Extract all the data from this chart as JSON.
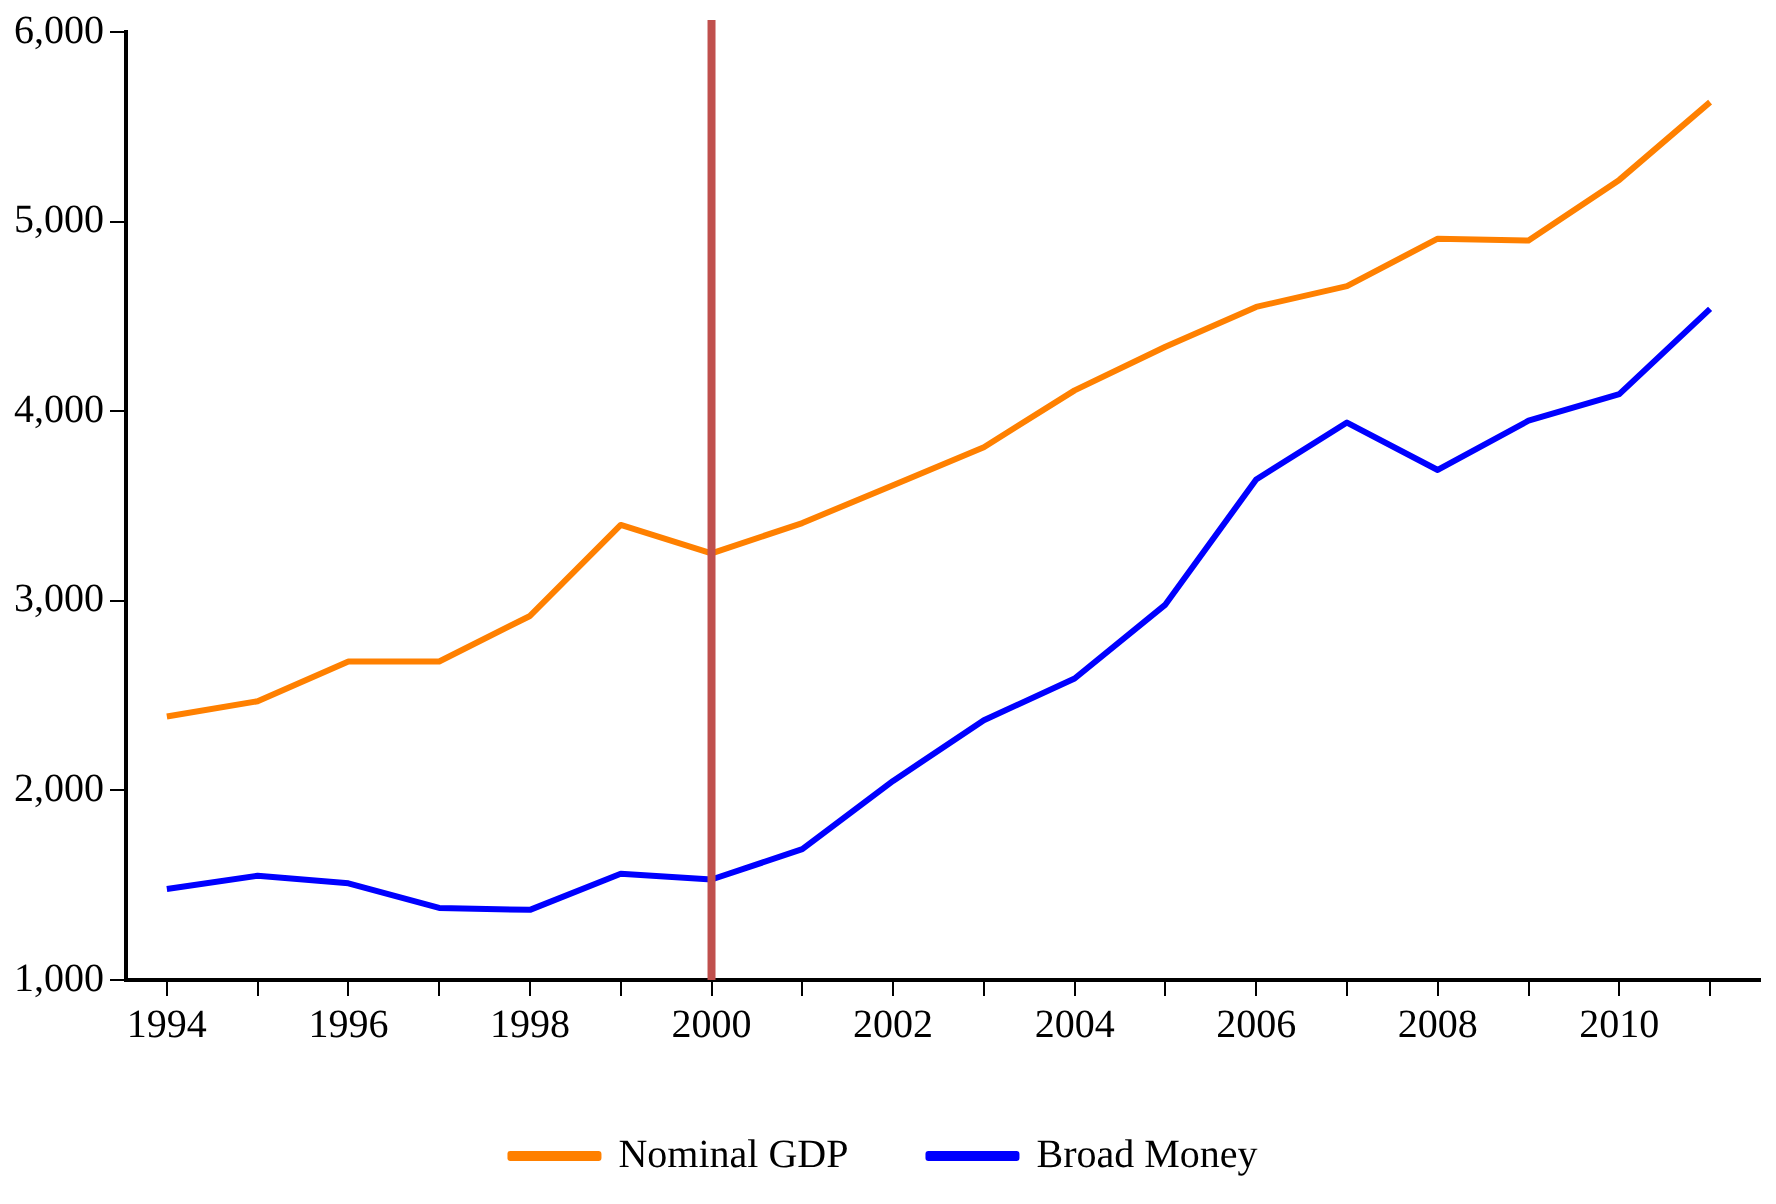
{
  "chart_data": {
    "type": "line",
    "x": [
      1994,
      1995,
      1996,
      1997,
      1998,
      1999,
      2000,
      2001,
      2002,
      2003,
      2004,
      2005,
      2006,
      2007,
      2008,
      2009,
      2010,
      2011
    ],
    "series": [
      {
        "name": "Nominal GDP",
        "color": "#ff8000",
        "values": [
          2390,
          2470,
          2680,
          2680,
          2920,
          3400,
          3250,
          3410,
          3610,
          3810,
          4110,
          4340,
          4550,
          4660,
          4910,
          4900,
          5220,
          5630
        ]
      },
      {
        "name": "Broad Money",
        "color": "#0000ff",
        "values": [
          1480,
          1550,
          1510,
          1380,
          1370,
          1560,
          1530,
          1690,
          2050,
          2370,
          2590,
          2980,
          3640,
          3940,
          3690,
          3950,
          4090,
          4540
        ]
      }
    ],
    "xlim": [
      1993.55,
      2011.55
    ],
    "xticks": [
      1994,
      {
        "value": 1995,
        "label": null
      },
      1996,
      {
        "value": 1997,
        "label": null
      },
      1998,
      {
        "value": 1999,
        "label": null
      },
      2000,
      {
        "value": 2001,
        "label": null
      },
      2002,
      {
        "value": 2003,
        "label": null
      },
      2004,
      {
        "value": 2005,
        "label": null
      },
      2006,
      {
        "value": 2007,
        "label": null
      },
      2008,
      {
        "value": 2009,
        "label": null
      },
      2010,
      {
        "value": 2011,
        "label": null
      }
    ],
    "ylim": [
      1000,
      6000
    ],
    "yticks": [
      {
        "value": 1000,
        "label": "1,000"
      },
      {
        "value": 2000,
        "label": "2,000"
      },
      {
        "value": 3000,
        "label": "3,000"
      },
      {
        "value": 4000,
        "label": "4,000"
      },
      {
        "value": 5000,
        "label": "5,000"
      },
      {
        "value": 6000,
        "label": "6,000"
      }
    ],
    "ref_lines": [
      {
        "axis": "x",
        "value": 2000,
        "color": "#c0504d"
      }
    ],
    "legend": "bottom",
    "grid": false,
    "marker": "none",
    "line_style": "solid"
  }
}
